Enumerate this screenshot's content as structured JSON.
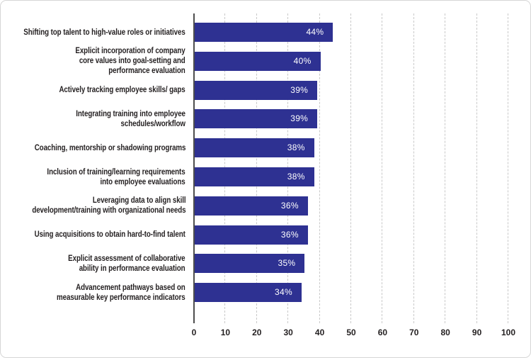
{
  "chart_data": {
    "type": "bar",
    "orientation": "horizontal",
    "title": "",
    "categories": [
      [
        "Shifting top talent to high-value roles or initiatives"
      ],
      [
        "Explicit incorporation of company",
        "core values into goal-setting and",
        "performance evaluation"
      ],
      [
        "Actively tracking employee skills/ gaps"
      ],
      [
        "Integrating training into employee",
        "schedules/workflow"
      ],
      [
        "Coaching, mentorship or shadowing programs"
      ],
      [
        "Inclusion of training/learning requirements",
        "into employee evaluations"
      ],
      [
        "Leveraging data to align skill",
        "development/training with organizational needs"
      ],
      [
        "Using acquisitions to obtain hard-to-find talent"
      ],
      [
        "Explicit assessment of collaborative",
        "ability in performance evaluation"
      ],
      [
        "Advancement pathways based on",
        "measurable key performance indicators"
      ]
    ],
    "values": [
      44,
      40,
      39,
      39,
      38,
      38,
      36,
      36,
      35,
      34
    ],
    "value_labels": [
      "44%",
      "40%",
      "39%",
      "39%",
      "38%",
      "38%",
      "36%",
      "36%",
      "35%",
      "34%"
    ],
    "xlabel": "",
    "ylabel": "",
    "xlim": [
      0,
      100
    ],
    "x_ticks": [
      0,
      10,
      20,
      30,
      40,
      50,
      60,
      70,
      80,
      90,
      100
    ],
    "grid": "vertical-dashed",
    "legend": "none",
    "colors": {
      "bar": "#2e3192",
      "value_label": "#ffffff",
      "category_label": "#231f20",
      "tick_label": "#231f20",
      "gridline": "#c9c9c9",
      "axis_line": "#4d4d4d",
      "background": "#ffffff",
      "border": "#d6d6d6"
    }
  }
}
